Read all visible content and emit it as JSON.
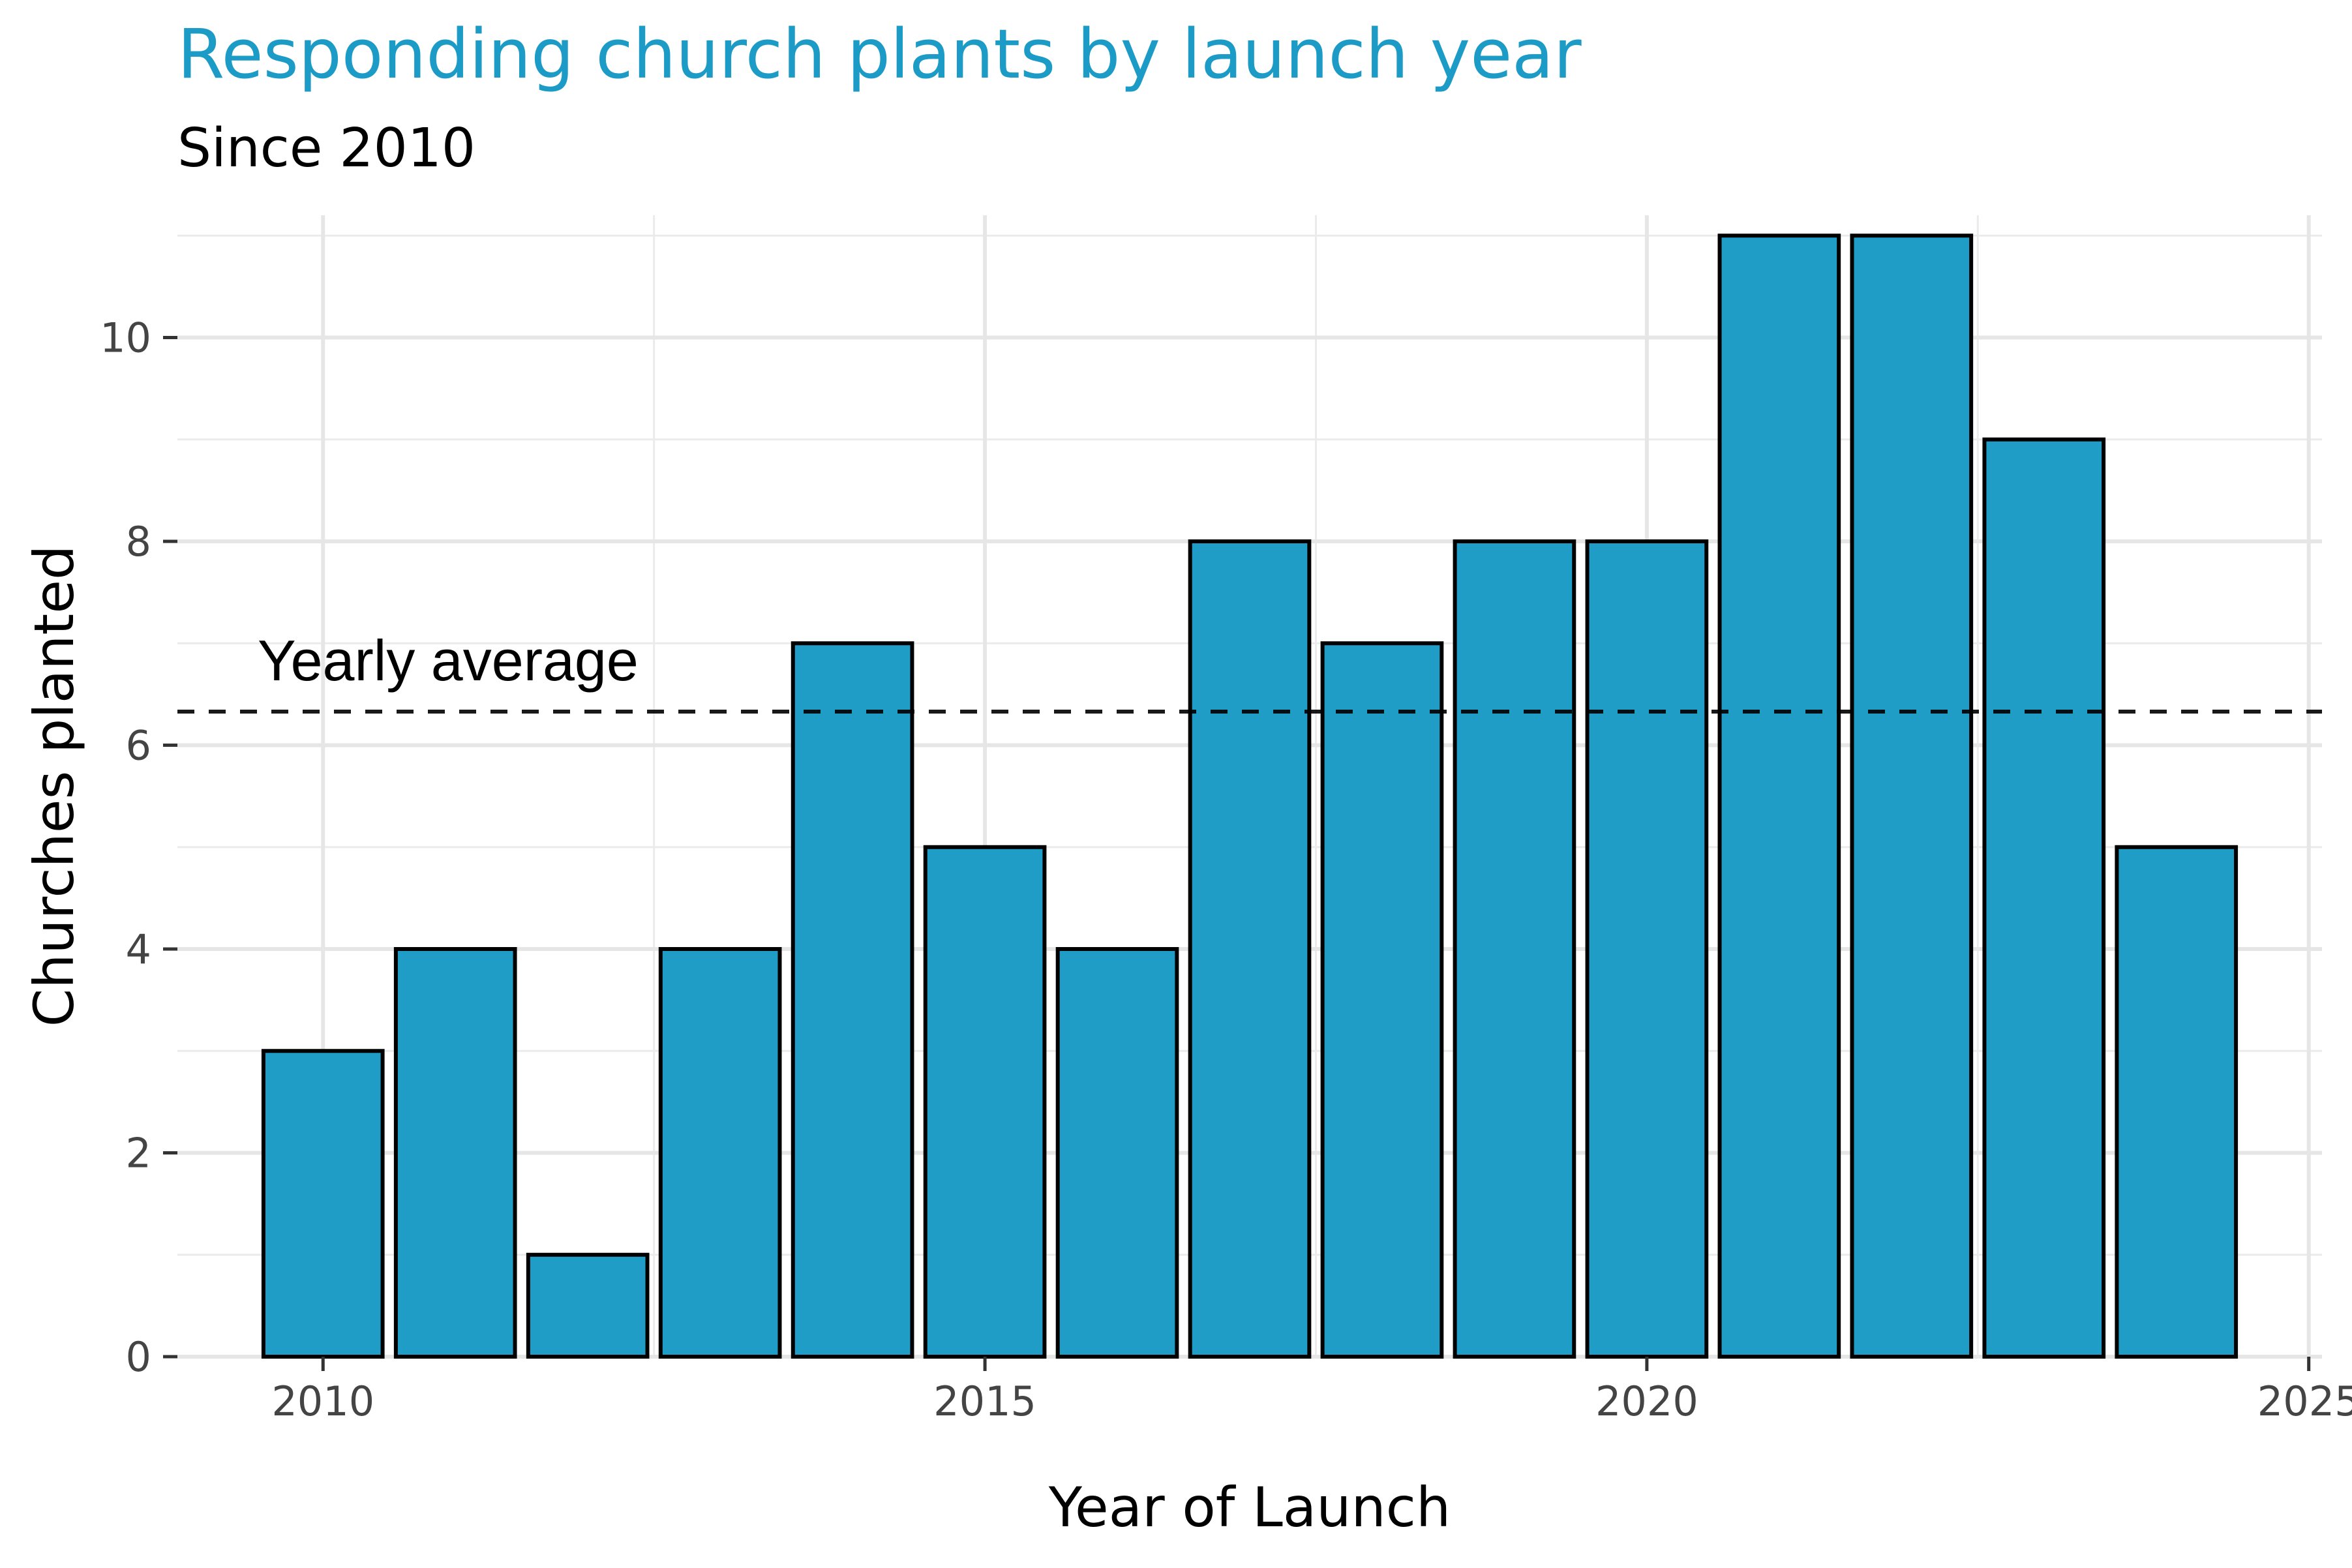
{
  "chart_data": {
    "type": "bar",
    "title": "Responding church plants by launch year",
    "subtitle": "Since 2010",
    "xlabel": "Year of Launch",
    "ylabel": "Churches planted",
    "x": [
      2010,
      2011,
      2012,
      2013,
      2014,
      2015,
      2016,
      2017,
      2018,
      2019,
      2020,
      2021,
      2022,
      2023,
      2024
    ],
    "values": [
      3,
      4,
      1,
      4,
      7,
      5,
      4,
      8,
      7,
      8,
      8,
      11,
      11,
      9,
      5
    ],
    "xlim": [
      2008.9,
      2025.1
    ],
    "ylim": [
      0,
      11.2
    ],
    "xticks": [
      2010,
      2015,
      2020,
      2025
    ],
    "yticks": [
      0,
      2,
      4,
      6,
      8,
      10
    ],
    "reference_line": {
      "label": "Yearly average",
      "value": 6.33,
      "style": "dashed"
    },
    "bar_color": "#1b9bc5",
    "bar_outline": "#000000",
    "grid": true,
    "legend": "none"
  }
}
